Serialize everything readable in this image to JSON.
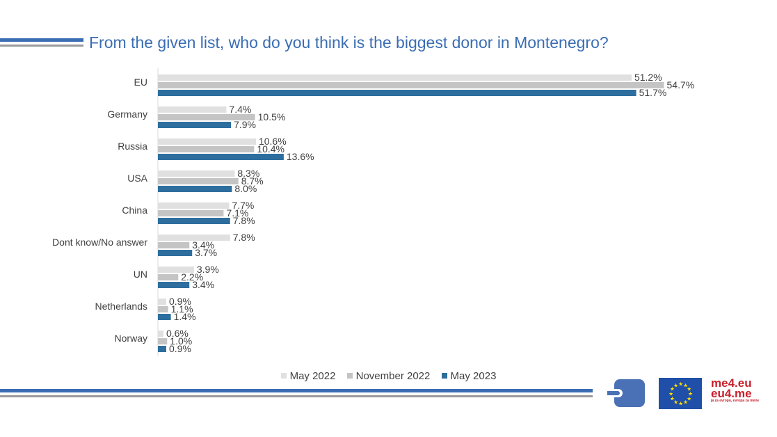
{
  "title": "From the given list, who do you think is the biggest donor in Montenegro?",
  "chart_data": {
    "type": "bar",
    "orientation": "horizontal",
    "categories": [
      "EU",
      "Germany",
      "Russia",
      "USA",
      "China",
      "Dont know/No answer",
      "UN",
      "Netherlands",
      "Norway"
    ],
    "series": [
      {
        "name": "May 2022",
        "color": "#e0e0e0",
        "values": [
          51.2,
          7.4,
          10.6,
          8.3,
          7.7,
          7.8,
          3.9,
          0.9,
          0.6
        ]
      },
      {
        "name": "November 2022",
        "color": "#c4c4c4",
        "values": [
          54.7,
          10.5,
          10.4,
          8.7,
          7.1,
          3.4,
          2.2,
          1.1,
          1.0
        ]
      },
      {
        "name": "May 2023",
        "color": "#2e6e9e",
        "values": [
          51.7,
          7.9,
          13.6,
          8.0,
          7.8,
          3.7,
          3.4,
          1.4,
          0.9
        ]
      }
    ],
    "value_format": "%",
    "legend": "bottom",
    "grid": false
  },
  "logos": {
    "eu_flag": "eu-flag",
    "me4eu": "me4.eu eu4.me"
  }
}
